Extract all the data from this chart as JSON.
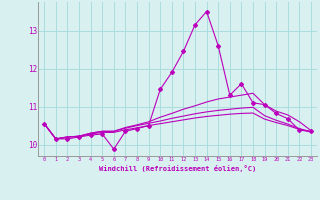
{
  "xlabel": "Windchill (Refroidissement éolien,°C)",
  "x": [
    0,
    1,
    2,
    3,
    4,
    5,
    6,
    7,
    8,
    9,
    10,
    11,
    12,
    13,
    14,
    15,
    16,
    17,
    18,
    19,
    20,
    21,
    22,
    23
  ],
  "line1": [
    10.55,
    10.15,
    10.15,
    10.2,
    10.25,
    10.28,
    9.88,
    10.35,
    10.42,
    10.5,
    11.45,
    11.9,
    12.45,
    13.15,
    13.5,
    12.6,
    11.3,
    11.6,
    11.1,
    11.05,
    10.82,
    10.68,
    10.38,
    10.35
  ],
  "line2": [
    10.55,
    10.15,
    10.2,
    10.22,
    10.3,
    10.35,
    10.35,
    10.45,
    10.52,
    10.6,
    10.72,
    10.82,
    10.93,
    11.02,
    11.12,
    11.2,
    11.25,
    11.3,
    11.35,
    11.05,
    10.88,
    10.78,
    10.6,
    10.37
  ],
  "line3": [
    10.55,
    10.15,
    10.2,
    10.22,
    10.3,
    10.35,
    10.35,
    10.43,
    10.5,
    10.56,
    10.62,
    10.69,
    10.75,
    10.81,
    10.86,
    10.9,
    10.93,
    10.96,
    10.98,
    10.76,
    10.64,
    10.54,
    10.42,
    10.34
  ],
  "line4": [
    10.55,
    10.15,
    10.2,
    10.22,
    10.28,
    10.32,
    10.32,
    10.39,
    10.44,
    10.5,
    10.55,
    10.6,
    10.65,
    10.7,
    10.74,
    10.77,
    10.8,
    10.82,
    10.83,
    10.67,
    10.58,
    10.5,
    10.4,
    10.33
  ],
  "color": "#bb00bb",
  "bg_color": "#d8f0f0",
  "grid_color": "#aadddd",
  "ylim": [
    9.7,
    13.75
  ],
  "yticks": [
    10,
    11,
    12,
    13
  ],
  "xticks": [
    0,
    1,
    2,
    3,
    4,
    5,
    6,
    7,
    8,
    9,
    10,
    11,
    12,
    13,
    14,
    15,
    16,
    17,
    18,
    19,
    20,
    21,
    22,
    23
  ]
}
